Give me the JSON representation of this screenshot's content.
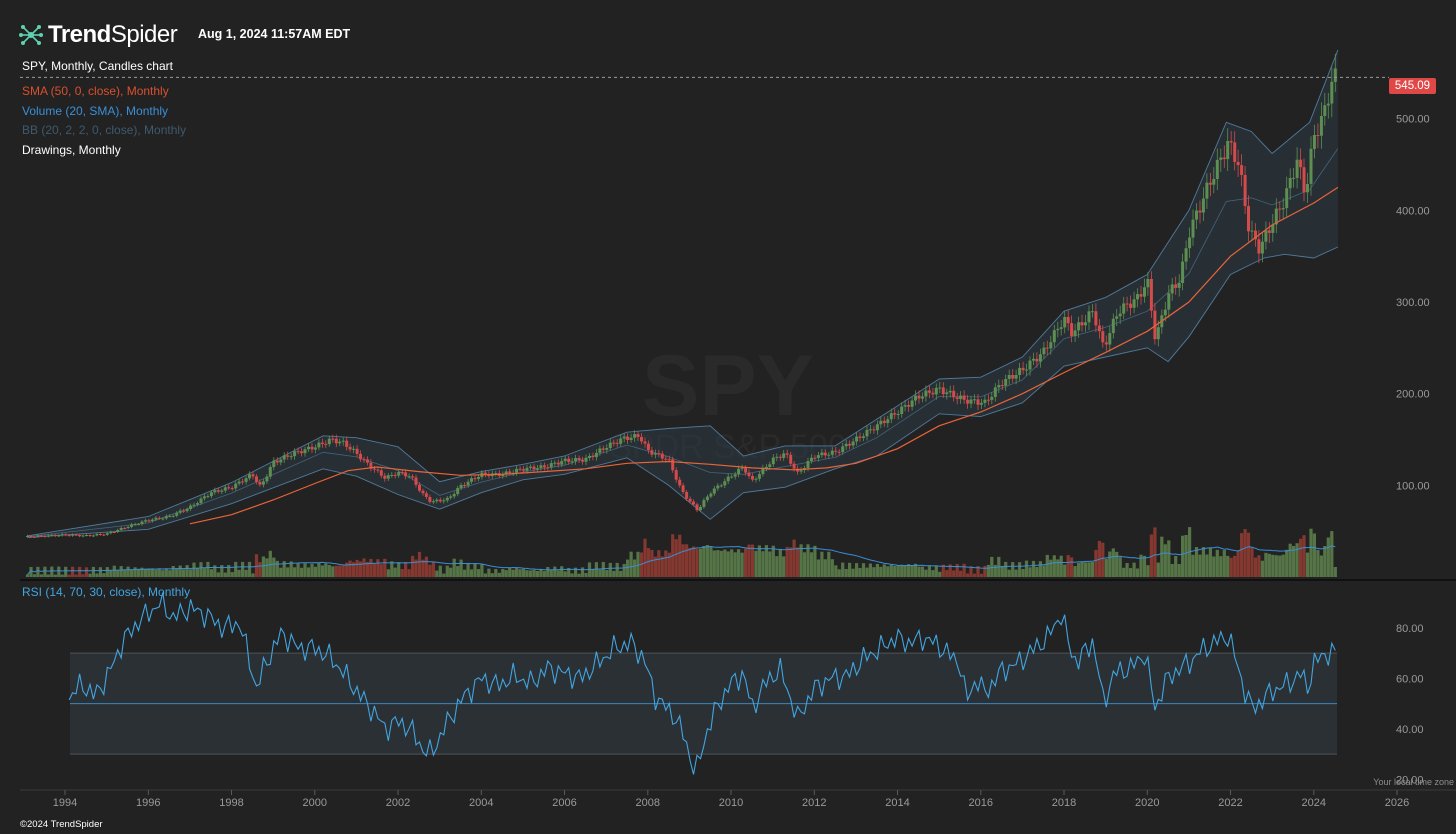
{
  "header": {
    "brand_part1": "Trend",
    "brand_part2": "Spider",
    "timestamp": "Aug 1, 2024 11:57AM EDT"
  },
  "legend": [
    {
      "text": "SPY, Monthly, Candles chart",
      "color": "#ffffff"
    },
    {
      "text": "SMA (50, 0, close), Monthly",
      "color": "#d9502e"
    },
    {
      "text": "Volume (20, SMA), Monthly",
      "color": "#3a8fd6"
    },
    {
      "text": "BB (20, 2, 2, 0, close), Monthly",
      "color": "#3e5a6e"
    },
    {
      "text": "Drawings, Monthly",
      "color": "#ffffff"
    }
  ],
  "watermark": {
    "symbol": "SPY",
    "name": "SPDR S&P 500"
  },
  "last_price_label": "545.09",
  "rsi_label": "RSI (14, 70, 30, close), Monthly",
  "footer": {
    "copyright": "©2024 TrendSpider",
    "timezone": "Your local time zone"
  },
  "colors": {
    "up": "#5e8f52",
    "down": "#d54a4a",
    "sma": "#e8643a",
    "bb": "#5b8fb8",
    "rsi": "#42a5e0",
    "price_tag": "#e04848"
  },
  "chart_data": {
    "type": "candlestick",
    "symbol": "SPY",
    "interval": "Monthly",
    "x_ticks": [
      "1994",
      "1996",
      "1998",
      "2000",
      "2002",
      "2004",
      "2006",
      "2008",
      "2010",
      "2012",
      "2014",
      "2016",
      "2018",
      "2020",
      "2022",
      "2024",
      "2026"
    ],
    "y_ticks": [
      "100.00",
      "200.00",
      "300.00",
      "400.00",
      "500.00"
    ],
    "ylim": [
      0,
      600
    ],
    "last_price": 545.09,
    "close_series": [
      [
        1993.1,
        44
      ],
      [
        1994.0,
        46
      ],
      [
        1994.5,
        45
      ],
      [
        1995.0,
        47
      ],
      [
        1995.5,
        55
      ],
      [
        1996.0,
        62
      ],
      [
        1996.5,
        66
      ],
      [
        1997.0,
        76
      ],
      [
        1997.5,
        92
      ],
      [
        1998.0,
        98
      ],
      [
        1998.5,
        112
      ],
      [
        1998.7,
        98
      ],
      [
        1999.0,
        125
      ],
      [
        1999.5,
        135
      ],
      [
        2000.0,
        142
      ],
      [
        2000.4,
        150
      ],
      [
        2000.7,
        146
      ],
      [
        2001.0,
        135
      ],
      [
        2001.3,
        122
      ],
      [
        2001.7,
        108
      ],
      [
        2002.0,
        114
      ],
      [
        2002.3,
        110
      ],
      [
        2002.6,
        90
      ],
      [
        2002.8,
        82
      ],
      [
        2003.2,
        85
      ],
      [
        2003.5,
        99
      ],
      [
        2004.0,
        112
      ],
      [
        2004.5,
        112
      ],
      [
        2005.0,
        118
      ],
      [
        2005.5,
        120
      ],
      [
        2006.0,
        127
      ],
      [
        2006.5,
        128
      ],
      [
        2007.0,
        142
      ],
      [
        2007.4,
        151
      ],
      [
        2007.8,
        154
      ],
      [
        2008.0,
        138
      ],
      [
        2008.5,
        128
      ],
      [
        2008.8,
        95
      ],
      [
        2009.0,
        83
      ],
      [
        2009.2,
        73
      ],
      [
        2009.5,
        92
      ],
      [
        2010.0,
        110
      ],
      [
        2010.3,
        120
      ],
      [
        2010.5,
        104
      ],
      [
        2011.0,
        128
      ],
      [
        2011.3,
        135
      ],
      [
        2011.6,
        113
      ],
      [
        2012.0,
        132
      ],
      [
        2012.5,
        136
      ],
      [
        2013.0,
        150
      ],
      [
        2013.5,
        165
      ],
      [
        2014.0,
        180
      ],
      [
        2014.5,
        197
      ],
      [
        2015.0,
        205
      ],
      [
        2015.6,
        193
      ],
      [
        2016.1,
        190
      ],
      [
        2016.5,
        212
      ],
      [
        2017.0,
        226
      ],
      [
        2017.5,
        245
      ],
      [
        2018.0,
        282
      ],
      [
        2018.2,
        266
      ],
      [
        2018.7,
        290
      ],
      [
        2018.95,
        250
      ],
      [
        2019.3,
        290
      ],
      [
        2019.8,
        305
      ],
      [
        2020.0,
        325
      ],
      [
        2020.2,
        258
      ],
      [
        2020.5,
        308
      ],
      [
        2020.8,
        326
      ],
      [
        2021.0,
        375
      ],
      [
        2021.5,
        430
      ],
      [
        2021.95,
        474
      ],
      [
        2022.2,
        450
      ],
      [
        2022.45,
        378
      ],
      [
        2022.7,
        358
      ],
      [
        2022.95,
        382
      ],
      [
        2023.3,
        412
      ],
      [
        2023.6,
        455
      ],
      [
        2023.8,
        418
      ],
      [
        2024.0,
        480
      ],
      [
        2024.25,
        505
      ],
      [
        2024.45,
        545
      ],
      [
        2024.58,
        545.09
      ]
    ],
    "sma_series": [
      [
        1997.0,
        58
      ],
      [
        1998.0,
        68
      ],
      [
        1999.0,
        84
      ],
      [
        2000.0,
        102
      ],
      [
        2000.8,
        116
      ],
      [
        2001.5,
        120
      ],
      [
        2002.5,
        115
      ],
      [
        2003.5,
        111
      ],
      [
        2004.5,
        112
      ],
      [
        2005.5,
        115
      ],
      [
        2006.5,
        118
      ],
      [
        2007.5,
        124
      ],
      [
        2008.5,
        126
      ],
      [
        2009.5,
        123
      ],
      [
        2010.5,
        119
      ],
      [
        2011.5,
        117
      ],
      [
        2012.3,
        119
      ],
      [
        2013.0,
        124
      ],
      [
        2014.0,
        140
      ],
      [
        2015.0,
        165
      ],
      [
        2016.0,
        180
      ],
      [
        2017.0,
        200
      ],
      [
        2018.0,
        223
      ],
      [
        2019.0,
        245
      ],
      [
        2020.0,
        268
      ],
      [
        2021.0,
        300
      ],
      [
        2022.0,
        350
      ],
      [
        2023.0,
        384
      ],
      [
        2024.0,
        408
      ],
      [
        2024.58,
        425
      ]
    ],
    "bb_upper": [
      [
        1993.1,
        45
      ],
      [
        1996.0,
        66
      ],
      [
        1998.0,
        103
      ],
      [
        2000.2,
        154
      ],
      [
        2001.0,
        152
      ],
      [
        2002.0,
        142
      ],
      [
        2003.0,
        104
      ],
      [
        2004.0,
        115
      ],
      [
        2005.0,
        123
      ],
      [
        2006.0,
        132
      ],
      [
        2007.5,
        158
      ],
      [
        2008.5,
        162
      ],
      [
        2009.5,
        165
      ],
      [
        2010.3,
        132
      ],
      [
        2011.3,
        143
      ],
      [
        2012.5,
        143
      ],
      [
        2013.5,
        172
      ],
      [
        2015.0,
        216
      ],
      [
        2016.0,
        218
      ],
      [
        2017.0,
        240
      ],
      [
        2018.0,
        290
      ],
      [
        2019.0,
        305
      ],
      [
        2020.0,
        330
      ],
      [
        2021.0,
        400
      ],
      [
        2021.9,
        496
      ],
      [
        2022.5,
        486
      ],
      [
        2023.0,
        462
      ],
      [
        2023.9,
        496
      ],
      [
        2024.58,
        575
      ]
    ],
    "bb_lower": [
      [
        1993.1,
        43
      ],
      [
        1996.0,
        52
      ],
      [
        1998.0,
        80
      ],
      [
        2000.2,
        118
      ],
      [
        2001.0,
        110
      ],
      [
        2002.0,
        90
      ],
      [
        2003.0,
        74
      ],
      [
        2004.0,
        92
      ],
      [
        2005.0,
        106
      ],
      [
        2006.0,
        112
      ],
      [
        2007.5,
        130
      ],
      [
        2008.5,
        100
      ],
      [
        2009.5,
        63
      ],
      [
        2010.3,
        92
      ],
      [
        2011.3,
        98
      ],
      [
        2012.5,
        118
      ],
      [
        2013.5,
        132
      ],
      [
        2015.0,
        178
      ],
      [
        2016.0,
        175
      ],
      [
        2017.0,
        190
      ],
      [
        2018.0,
        230
      ],
      [
        2019.0,
        240
      ],
      [
        2020.0,
        250
      ],
      [
        2020.5,
        235
      ],
      [
        2021.0,
        262
      ],
      [
        2022.0,
        330
      ],
      [
        2022.8,
        348
      ],
      [
        2023.3,
        352
      ],
      [
        2024.0,
        348
      ],
      [
        2024.58,
        360
      ]
    ],
    "rsi": {
      "ylim": [
        15,
        95
      ],
      "y_ticks": [
        "80.00",
        "60.00",
        "40.00",
        "20.00"
      ],
      "overbought": 70,
      "oversold": 30,
      "mid": 50,
      "series": [
        [
          1994.1,
          52
        ],
        [
          1994.4,
          58
        ],
        [
          1994.7,
          53
        ],
        [
          1995.0,
          60
        ],
        [
          1995.4,
          75
        ],
        [
          1995.8,
          83
        ],
        [
          1996.3,
          90
        ],
        [
          1996.6,
          84
        ],
        [
          1997.0,
          88
        ],
        [
          1997.4,
          85
        ],
        [
          1997.8,
          80
        ],
        [
          1998.2,
          82
        ],
        [
          1998.6,
          56
        ],
        [
          1998.8,
          65
        ],
        [
          1999.2,
          78
        ],
        [
          1999.6,
          72
        ],
        [
          2000.0,
          72
        ],
        [
          2000.4,
          68
        ],
        [
          2000.7,
          62
        ],
        [
          2001.0,
          55
        ],
        [
          2001.4,
          47
        ],
        [
          2001.7,
          40
        ],
        [
          2002.0,
          43
        ],
        [
          2002.3,
          40
        ],
        [
          2002.6,
          32
        ],
        [
          2002.8,
          30
        ],
        [
          2003.1,
          40
        ],
        [
          2003.5,
          51
        ],
        [
          2004.0,
          60
        ],
        [
          2004.4,
          57
        ],
        [
          2004.8,
          61
        ],
        [
          2005.2,
          58
        ],
        [
          2005.6,
          64
        ],
        [
          2006.0,
          62
        ],
        [
          2006.4,
          60
        ],
        [
          2006.8,
          66
        ],
        [
          2007.2,
          72
        ],
        [
          2007.6,
          74
        ],
        [
          2007.9,
          68
        ],
        [
          2008.2,
          52
        ],
        [
          2008.6,
          46
        ],
        [
          2008.85,
          38
        ],
        [
          2009.0,
          30
        ],
        [
          2009.15,
          22
        ],
        [
          2009.4,
          38
        ],
        [
          2009.7,
          50
        ],
        [
          2010.0,
          58
        ],
        [
          2010.3,
          62
        ],
        [
          2010.5,
          48
        ],
        [
          2010.9,
          60
        ],
        [
          2011.2,
          63
        ],
        [
          2011.6,
          44
        ],
        [
          2012.0,
          56
        ],
        [
          2012.4,
          60
        ],
        [
          2012.8,
          61
        ],
        [
          2013.2,
          68
        ],
        [
          2013.6,
          72
        ],
        [
          2013.95,
          76
        ],
        [
          2014.3,
          74
        ],
        [
          2014.6,
          76
        ],
        [
          2014.9,
          74
        ],
        [
          2015.2,
          70
        ],
        [
          2015.5,
          66
        ],
        [
          2015.65,
          51
        ],
        [
          2015.9,
          60
        ],
        [
          2016.1,
          54
        ],
        [
          2016.5,
          63
        ],
        [
          2016.9,
          66
        ],
        [
          2017.3,
          72
        ],
        [
          2017.6,
          76
        ],
        [
          2017.95,
          86
        ],
        [
          2018.1,
          74
        ],
        [
          2018.3,
          66
        ],
        [
          2018.7,
          75
        ],
        [
          2018.95,
          50
        ],
        [
          2019.2,
          62
        ],
        [
          2019.6,
          64
        ],
        [
          2019.95,
          70
        ],
        [
          2020.2,
          47
        ],
        [
          2020.4,
          58
        ],
        [
          2020.7,
          63
        ],
        [
          2021.0,
          66
        ],
        [
          2021.3,
          71
        ],
        [
          2021.7,
          75
        ],
        [
          2021.95,
          77
        ],
        [
          2022.15,
          66
        ],
        [
          2022.4,
          52
        ],
        [
          2022.55,
          48
        ],
        [
          2022.8,
          52
        ],
        [
          2023.0,
          55
        ],
        [
          2023.4,
          58
        ],
        [
          2023.7,
          62
        ],
        [
          2023.85,
          56
        ],
        [
          2024.0,
          66
        ],
        [
          2024.3,
          70
        ],
        [
          2024.58,
          70
        ]
      ]
    }
  }
}
